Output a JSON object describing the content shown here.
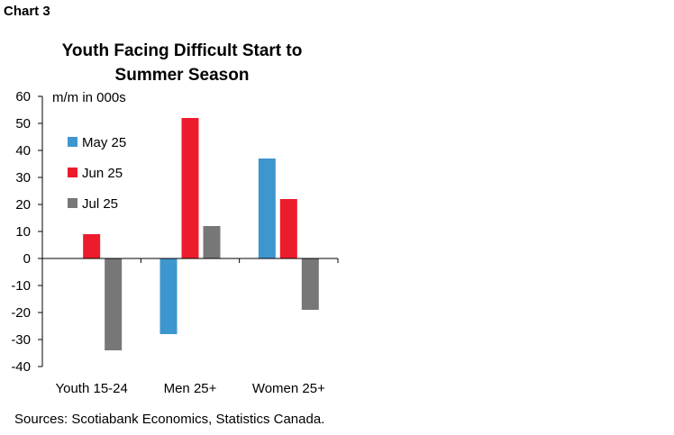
{
  "chart_label": "Chart 3",
  "source": "Sources: Scotiabank Economics, Statistics Canada.",
  "colors": {
    "May 25": "#3e96cf",
    "Jun 25": "#ec1c2d",
    "Jul 25": "#777777"
  },
  "chart_data": {
    "type": "bar",
    "title_lines": [
      "Youth Facing Difficult Start to",
      "Summer Season"
    ],
    "ylabel": "m/m in 000s",
    "xlabel": "",
    "categories": [
      "Youth 15-24",
      "Men 25+",
      "Women 25+"
    ],
    "series": [
      {
        "name": "May 25",
        "values": [
          0,
          -28,
          37
        ]
      },
      {
        "name": "Jun 25",
        "values": [
          9,
          52,
          22
        ]
      },
      {
        "name": "Jul 25",
        "values": [
          -34,
          12,
          -19
        ]
      }
    ],
    "ylim": [
      -40,
      60
    ],
    "yticks": [
      "60",
      "50",
      "40",
      "30",
      "20",
      "10",
      "0",
      "-10",
      "-20",
      "-30",
      "-40"
    ],
    "legend_position": "upper-left-inside",
    "grid": false
  }
}
